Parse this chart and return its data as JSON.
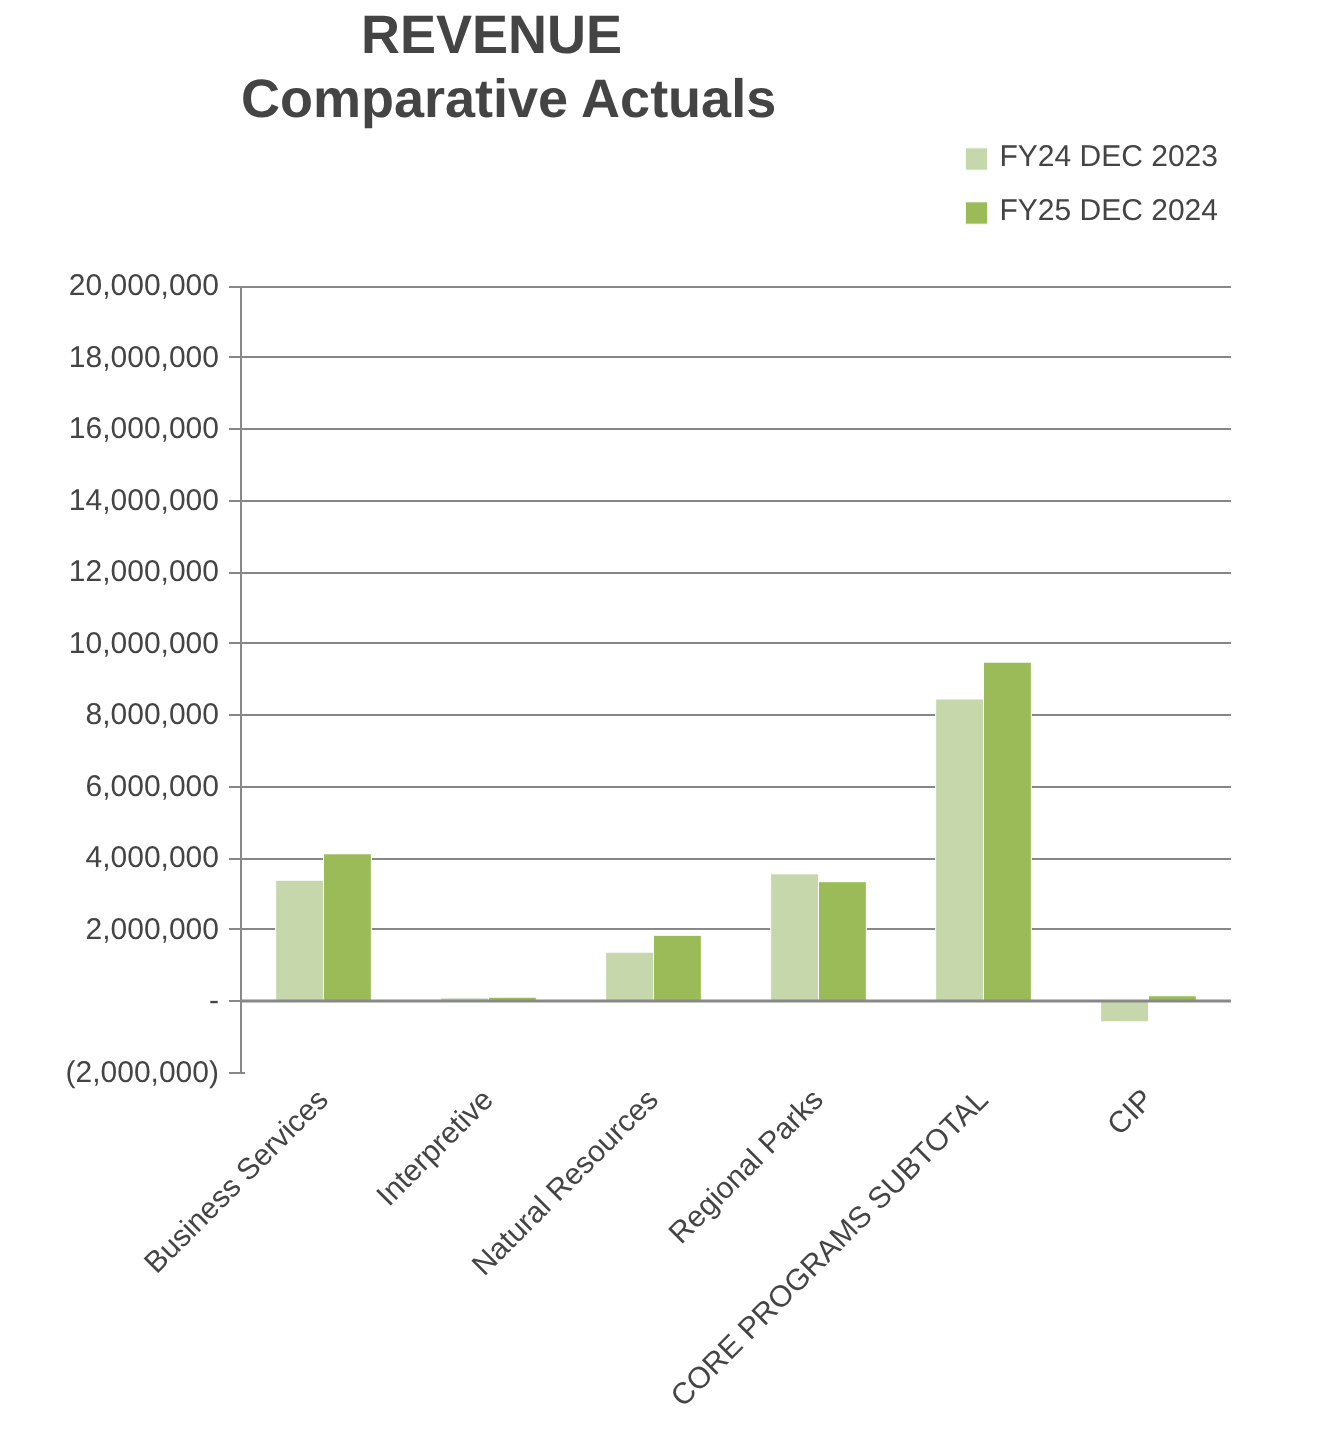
{
  "chart_data": {
    "type": "bar",
    "title": "REVENUE",
    "subtitle": "Comparative Actuals",
    "categories": [
      "Business Services",
      "Interpretive",
      "Natural Resources",
      "Regional Parks",
      "CORE PROGRAMS SUBTOTAL",
      "CIP"
    ],
    "series": [
      {
        "name": "FY24 DEC 2023",
        "color": "#c6d7ac",
        "values": [
          3390000,
          100000,
          1380000,
          3570000,
          8460000,
          -570000
        ]
      },
      {
        "name": "FY25 DEC 2024",
        "color": "#9bbb59",
        "values": [
          4130000,
          120000,
          1850000,
          3350000,
          9490000,
          160000
        ]
      }
    ],
    "ylim": [
      -2000000,
      20000000
    ],
    "yticks": [
      {
        "value": -2000000,
        "label": "(2,000,000)"
      },
      {
        "value": 0,
        "label": "-"
      },
      {
        "value": 2000000,
        "label": "2,000,000"
      },
      {
        "value": 4000000,
        "label": "4,000,000"
      },
      {
        "value": 6000000,
        "label": "6,000,000"
      },
      {
        "value": 8000000,
        "label": "8,000,000"
      },
      {
        "value": 10000000,
        "label": "10,000,000"
      },
      {
        "value": 12000000,
        "label": "12,000,000"
      },
      {
        "value": 14000000,
        "label": "14,000,000"
      },
      {
        "value": 16000000,
        "label": "16,000,000"
      },
      {
        "value": 18000000,
        "label": "18,000,000"
      },
      {
        "value": 20000000,
        "label": "20,000,000"
      }
    ],
    "grid": "y",
    "legend": "top right"
  }
}
